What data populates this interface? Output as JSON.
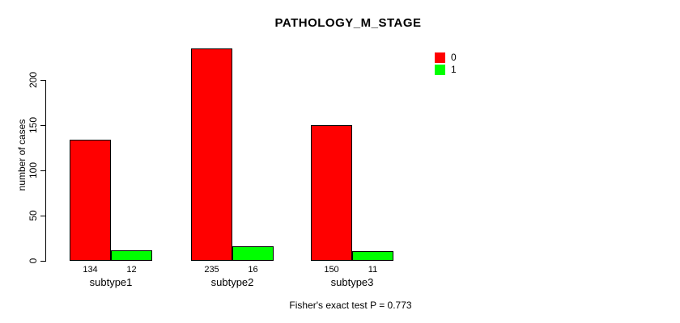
{
  "footnote": "Fisher's exact test P = 0.773",
  "legend": {
    "position": "top-right",
    "entries": [
      {
        "label": "0",
        "color": "#FF0000"
      },
      {
        "label": "1",
        "color": "#00FF00"
      }
    ]
  },
  "chart_data": {
    "type": "bar",
    "title": "PATHOLOGY_M_STAGE",
    "xlabel": "",
    "ylabel": "number of cases",
    "categories": [
      "subtype1",
      "subtype2",
      "subtype3"
    ],
    "series": [
      {
        "name": "0",
        "color": "#FF0000",
        "values": [
          134,
          235,
          150
        ]
      },
      {
        "name": "1",
        "color": "#00FF00",
        "values": [
          12,
          16,
          11
        ]
      }
    ],
    "bar_value_labels": [
      [
        "134",
        "12"
      ],
      [
        "235",
        "16"
      ],
      [
        "150",
        "11"
      ]
    ],
    "yticks": [
      0,
      50,
      100,
      150,
      200
    ],
    "ylim": [
      0,
      237
    ],
    "grid": false,
    "bar_border_color": "#000000",
    "legend_position": "top-right"
  }
}
